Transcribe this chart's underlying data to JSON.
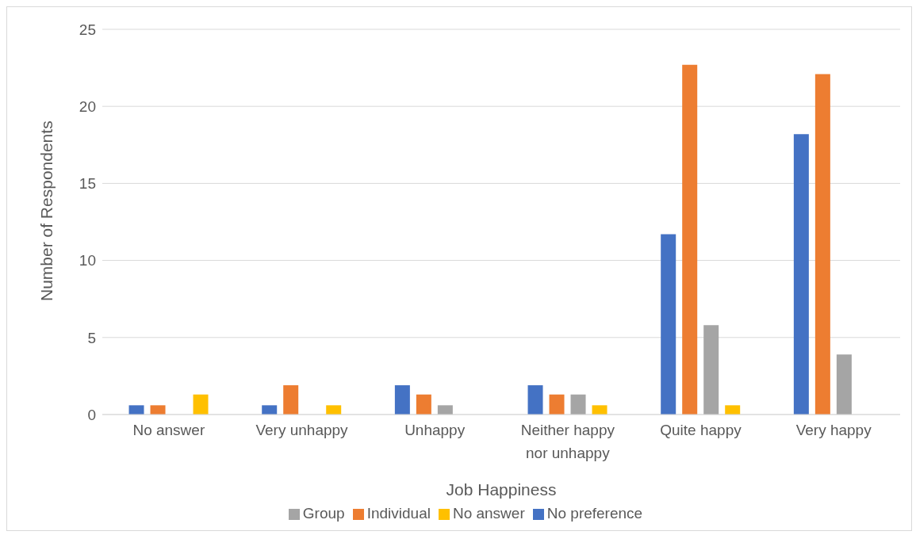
{
  "chart_data": {
    "type": "bar",
    "xlabel": "Job Happiness",
    "ylabel": "Number of  Respondents",
    "categories": [
      "No answer",
      "Very unhappy",
      "Unhappy",
      "Neither happy nor unhappy",
      "Quite happy",
      "Very happy"
    ],
    "series": [
      {
        "name": "No preference",
        "color": "#4472c4",
        "values": [
          0.6,
          0.6,
          1.9,
          1.9,
          11.7,
          18.2
        ]
      },
      {
        "name": "Individual",
        "color": "#ed7d31",
        "values": [
          0.6,
          1.9,
          1.3,
          1.3,
          22.7,
          22.1
        ]
      },
      {
        "name": "Group",
        "color": "#a5a5a5",
        "values": [
          0,
          0,
          0.6,
          1.3,
          5.8,
          3.9
        ]
      },
      {
        "name": "No answer",
        "color": "#ffc000",
        "values": [
          1.3,
          0.6,
          0,
          0.6,
          0.6,
          0
        ]
      }
    ],
    "ylim": [
      0,
      25
    ],
    "yticks": [
      0,
      5,
      10,
      15,
      20,
      25
    ],
    "grid": "y",
    "legend": "bottom"
  }
}
